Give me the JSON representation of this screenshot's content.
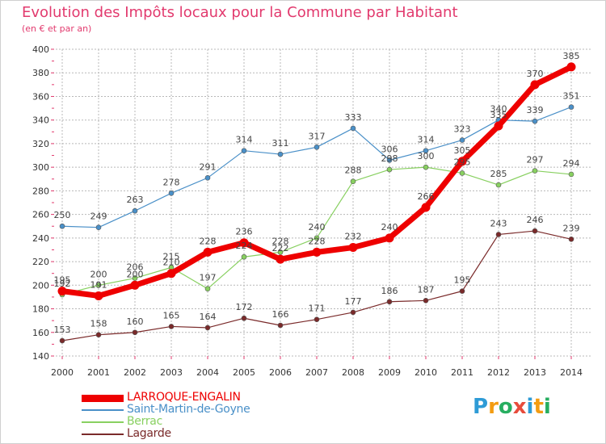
{
  "header": {
    "title": "Evolution des Impôts locaux pour la Commune par Habitant",
    "subtitle": "(en € et par an)"
  },
  "colors": {
    "title": "#e23a6e",
    "grid": "#b8b8b8",
    "axis_ticks": "#e23a6e"
  },
  "logo": {
    "text": "Proxiti",
    "letters": [
      {
        "char": "P",
        "color": "#2e9bd6"
      },
      {
        "char": "r",
        "color": "#f39c12"
      },
      {
        "char": "o",
        "color": "#27ae60"
      },
      {
        "char": "x",
        "color": "#e74c3c"
      },
      {
        "char": "i",
        "color": "#2e9bd6"
      },
      {
        "char": "t",
        "color": "#f39c12"
      },
      {
        "char": "i",
        "color": "#27ae60"
      }
    ]
  },
  "chart_data": {
    "type": "line",
    "title": "Evolution des Impôts locaux pour la Commune par Habitant",
    "subtitle": "(en € et par an)",
    "x": [
      "2000",
      "2001",
      "2002",
      "2003",
      "2004",
      "2005",
      "2006",
      "2007",
      "2008",
      "2009",
      "2010",
      "2011",
      "2012",
      "2013",
      "2014"
    ],
    "yticks": [
      140,
      160,
      180,
      200,
      220,
      240,
      260,
      280,
      300,
      320,
      340,
      360,
      380,
      400
    ],
    "ylim": [
      140,
      400
    ],
    "grid": true,
    "legend_position": "bottom-left",
    "series": [
      {
        "name": "LARROQUE-ENGALIN",
        "color": "#ee0000",
        "emphasis": true,
        "values": [
          195,
          191,
          200,
          210,
          228,
          236,
          222,
          228,
          232,
          240,
          266,
          305,
          335,
          370,
          385
        ]
      },
      {
        "name": "Saint-Martin-de-Goyne",
        "color": "#4a90c8",
        "emphasis": false,
        "values": [
          250,
          249,
          263,
          278,
          291,
          314,
          311,
          317,
          333,
          306,
          314,
          323,
          340,
          339,
          351
        ]
      },
      {
        "name": "Berrac",
        "color": "#88d060",
        "emphasis": false,
        "values": [
          192,
          200,
          206,
          215,
          197,
          224,
          228,
          240,
          288,
          298,
          300,
          295,
          285,
          297,
          294
        ]
      },
      {
        "name": "Lagarde",
        "color": "#7a2a2a",
        "emphasis": false,
        "values": [
          153,
          158,
          160,
          165,
          164,
          172,
          166,
          171,
          177,
          186,
          187,
          195,
          243,
          246,
          239
        ]
      }
    ]
  }
}
